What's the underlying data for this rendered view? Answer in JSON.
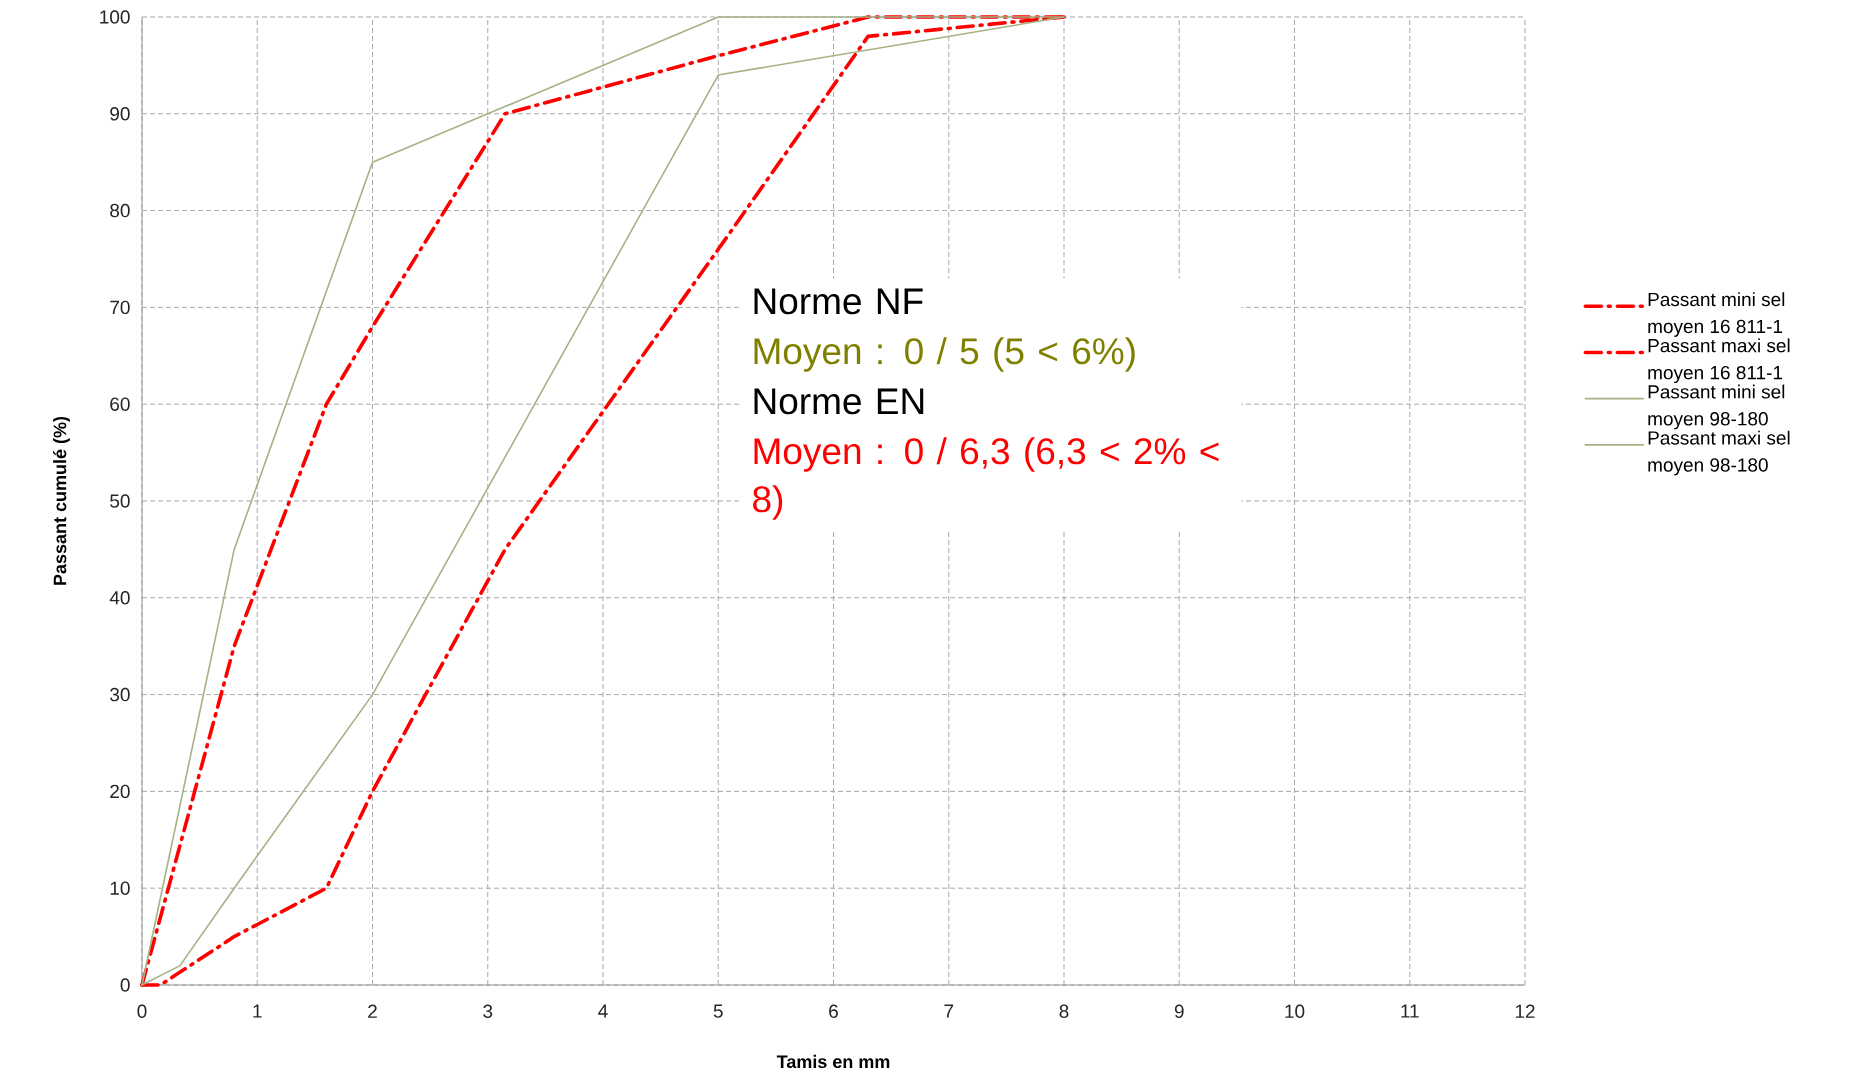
{
  "chart_data": {
    "type": "line",
    "xlabel": "Tamis en mm",
    "ylabel": "Passant cumulé (%)",
    "xlim": [
      0,
      12
    ],
    "xticks": [
      0,
      1,
      2,
      3,
      4,
      5,
      6,
      7,
      8,
      9,
      10,
      11,
      12
    ],
    "ylim": [
      0,
      100
    ],
    "yticks": [
      0,
      10,
      20,
      30,
      40,
      50,
      60,
      70,
      80,
      90,
      100
    ],
    "grid": true,
    "legend": "right",
    "marker": "none",
    "series": [
      {
        "name": "Passant mini sel moyen 16 811-1",
        "color": "#ff0000",
        "line_style": "dashdot",
        "x": [
          0,
          0.16,
          0.8,
          1.6,
          2,
          3.15,
          5,
          6.3,
          8
        ],
        "values": [
          0,
          0,
          5,
          10,
          20,
          45,
          76,
          98,
          100
        ]
      },
      {
        "name": "Passant maxi sel moyen 16 811-1",
        "color": "#ff0000",
        "line_style": "dashdot",
        "x": [
          0,
          0.8,
          1.6,
          2,
          3.15,
          5,
          6.3,
          8
        ],
        "values": [
          0,
          35,
          60,
          68,
          90,
          96,
          100,
          100
        ]
      },
      {
        "name": "Passant mini sel moyen 98-180",
        "color": "#a3b384",
        "line_style": "solid",
        "x": [
          0,
          0.33,
          0.8,
          2,
          5,
          8
        ],
        "values": [
          0,
          2,
          10,
          30,
          94,
          100
        ]
      },
      {
        "name": "Passant maxi sel moyen 98-180",
        "color": "#a3b384",
        "line_style": "solid",
        "x": [
          0,
          0.8,
          2,
          5,
          8
        ],
        "values": [
          0,
          45,
          85,
          100,
          100
        ]
      }
    ],
    "annotations": [
      "Norme NF",
      "Moyen :  0 / 5 (5 < 6%)",
      "Norme EN",
      "Moyen :  0 / 6,3 (6,3 < 2% < 8)"
    ]
  }
}
